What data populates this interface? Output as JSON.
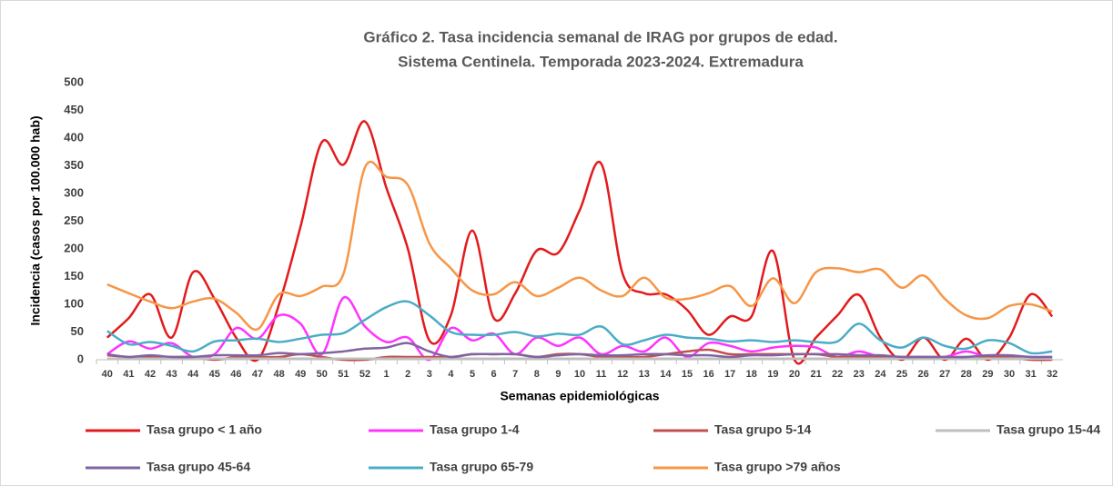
{
  "chart_data": {
    "type": "line",
    "title": "Gráfico 2. Tasa incidencia semanal de IRAG por grupos de edad.",
    "subtitle": "Sistema Centinela. Temporada 2023-2024. Extremadura",
    "x_label": "Semanas epidemiológicas",
    "y_label": "Incidencia (casos por 100.000 hab)",
    "categories": [
      "40",
      "41",
      "42",
      "43",
      "44",
      "45",
      "46",
      "47",
      "48",
      "49",
      "50",
      "51",
      "52",
      "1",
      "2",
      "3",
      "4",
      "5",
      "6",
      "7",
      "8",
      "9",
      "10",
      "11",
      "12",
      "13",
      "14",
      "15",
      "16",
      "17",
      "18",
      "19",
      "20",
      "21",
      "22",
      "23",
      "24",
      "25",
      "26",
      "27",
      "28",
      "29",
      "30",
      "31",
      "32"
    ],
    "ylim": [
      0,
      500
    ],
    "yticks": [
      0,
      50,
      100,
      150,
      200,
      250,
      300,
      350,
      400,
      450,
      500
    ],
    "grid": false,
    "smooth": true,
    "legend": "bottom",
    "series": [
      {
        "name": "Tasa grupo < 1 año",
        "color": "#e31a1c",
        "values": [
          40,
          75,
          118,
          40,
          158,
          110,
          40,
          0,
          100,
          240,
          393,
          352,
          430,
          310,
          200,
          35,
          80,
          233,
          75,
          120,
          197,
          193,
          270,
          354,
          155,
          120,
          118,
          90,
          45,
          78,
          78,
          196,
          0,
          40,
          80,
          117,
          40,
          0,
          40,
          0,
          38,
          0,
          40,
          118,
          78
        ]
      },
      {
        "name": "Tasa grupo 1-4",
        "color": "#ff33ff",
        "values": [
          10,
          33,
          20,
          30,
          5,
          10,
          57,
          38,
          80,
          65,
          10,
          112,
          60,
          32,
          40,
          0,
          57,
          35,
          47,
          10,
          40,
          25,
          40,
          10,
          25,
          15,
          40,
          5,
          30,
          25,
          15,
          22,
          25,
          22,
          5,
          15,
          5,
          5,
          5,
          5,
          15,
          5,
          5,
          5,
          5
        ]
      },
      {
        "name": "Tasa grupo 5-14",
        "color": "#c0504d",
        "values": [
          8,
          5,
          5,
          5,
          5,
          0,
          5,
          5,
          5,
          10,
          5,
          0,
          0,
          5,
          5,
          5,
          5,
          10,
          10,
          10,
          5,
          10,
          10,
          5,
          5,
          5,
          10,
          15,
          18,
          10,
          10,
          10,
          10,
          10,
          5,
          5,
          5,
          5,
          5,
          5,
          5,
          5,
          5,
          0,
          0
        ]
      },
      {
        "name": "Tasa grupo 15-44",
        "color": "#bfbfbf",
        "values": [
          2,
          2,
          2,
          2,
          2,
          2,
          2,
          2,
          2,
          2,
          2,
          2,
          2,
          2,
          2,
          2,
          2,
          2,
          2,
          2,
          2,
          2,
          2,
          2,
          2,
          2,
          2,
          2,
          2,
          2,
          2,
          2,
          2,
          2,
          2,
          2,
          2,
          2,
          2,
          2,
          2,
          2,
          2,
          2,
          2
        ]
      },
      {
        "name": "Tasa grupo 45-64",
        "color": "#8064a2",
        "values": [
          10,
          5,
          8,
          5,
          5,
          8,
          8,
          8,
          12,
          10,
          12,
          15,
          20,
          22,
          30,
          15,
          5,
          10,
          10,
          10,
          5,
          8,
          10,
          8,
          8,
          10,
          10,
          8,
          8,
          5,
          8,
          8,
          10,
          10,
          10,
          8,
          8,
          5,
          5,
          5,
          5,
          8,
          8,
          5,
          5
        ]
      },
      {
        "name": "Tasa grupo 65-79",
        "color": "#4bacc6",
        "values": [
          52,
          28,
          32,
          25,
          15,
          33,
          35,
          38,
          32,
          38,
          45,
          48,
          72,
          95,
          105,
          80,
          50,
          45,
          45,
          50,
          42,
          47,
          45,
          60,
          28,
          35,
          45,
          40,
          38,
          33,
          35,
          32,
          35,
          32,
          33,
          65,
          35,
          22,
          40,
          25,
          20,
          35,
          30,
          12,
          15
        ]
      },
      {
        "name": "Tasa grupo >79 años",
        "color": "#f79646",
        "values": [
          136,
          120,
          105,
          93,
          105,
          110,
          85,
          55,
          118,
          115,
          132,
          155,
          347,
          330,
          315,
          210,
          165,
          125,
          118,
          140,
          115,
          130,
          148,
          125,
          115,
          148,
          112,
          110,
          120,
          133,
          97,
          147,
          102,
          158,
          165,
          158,
          163,
          130,
          152,
          110,
          80,
          75,
          97,
          100,
          87
        ]
      }
    ]
  }
}
